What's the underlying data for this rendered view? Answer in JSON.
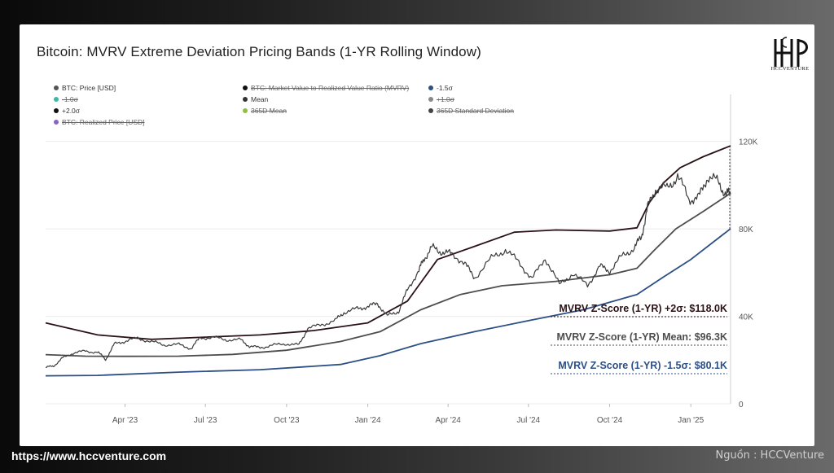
{
  "colors": {
    "price": "#3a3a3a",
    "plus2": "#2a1216",
    "mean": "#4d4d4d",
    "minus1_5": "#2c4f85",
    "grid": "#ececec",
    "tick": "#555555"
  },
  "footer": {
    "url": "https://www.hccventure.com",
    "source": "Nguồn : HCCVenture"
  },
  "logo_text": "HCCVENTURE",
  "chart_data": {
    "type": "line",
    "title": "Bitcoin: MVRV Extreme Deviation Pricing Bands (1-YR Rolling Window)",
    "xlabel": "",
    "ylabel": "",
    "x_ticks": [
      "Apr '23",
      "Jul '23",
      "Oct '23",
      "Jan '24",
      "Apr '24",
      "Jul '24",
      "Oct '24",
      "Jan '25"
    ],
    "y_ticks": [
      "0",
      "40K",
      "80K",
      "120K"
    ],
    "y_tick_values": [
      0,
      40000,
      80000,
      120000
    ],
    "ylim": [
      0,
      140000
    ],
    "grid": true,
    "legend_position": "top-left",
    "legend": [
      {
        "label": "BTC: Price [USD]",
        "color": "#555555",
        "enabled": true
      },
      {
        "label": "BTC: Market Value to Realized Value Ratio (MVRV)",
        "color": "#111111",
        "enabled": false
      },
      {
        "label": "-1.5σ",
        "color": "#2c4f85",
        "enabled": true
      },
      {
        "label": "-1.0σ",
        "color": "#3cb8a6",
        "enabled": false
      },
      {
        "label": "Mean",
        "color": "#333333",
        "enabled": true
      },
      {
        "label": "+1.0σ",
        "color": "#888888",
        "enabled": false
      },
      {
        "label": "+2.0σ",
        "color": "#111111",
        "enabled": true
      },
      {
        "label": "365D Mean",
        "color": "#8fbf3f",
        "enabled": false
      },
      {
        "label": "365D Standard Deviation",
        "color": "#444444",
        "enabled": false
      },
      {
        "label": "BTC: Realized Price [USD]",
        "color": "#8a63c7",
        "enabled": false
      }
    ],
    "x_start": "2023-01-01",
    "x_end": "2025-02-15",
    "series": [
      {
        "name": "BTC: Price [USD]",
        "x": [
          "2023-01-01",
          "2023-01-10",
          "2023-01-20",
          "2023-02-01",
          "2023-02-15",
          "2023-03-01",
          "2023-03-10",
          "2023-03-20",
          "2023-04-01",
          "2023-04-15",
          "2023-05-01",
          "2023-05-15",
          "2023-06-01",
          "2023-06-15",
          "2023-06-25",
          "2023-07-10",
          "2023-07-25",
          "2023-08-10",
          "2023-08-20",
          "2023-09-01",
          "2023-09-15",
          "2023-10-01",
          "2023-10-15",
          "2023-10-25",
          "2023-11-10",
          "2023-11-25",
          "2023-12-05",
          "2023-12-20",
          "2024-01-01",
          "2024-01-12",
          "2024-01-23",
          "2024-02-05",
          "2024-02-15",
          "2024-02-28",
          "2024-03-05",
          "2024-03-14",
          "2024-03-25",
          "2024-04-05",
          "2024-04-20",
          "2024-05-01",
          "2024-05-20",
          "2024-06-05",
          "2024-06-20",
          "2024-07-05",
          "2024-07-20",
          "2024-08-05",
          "2024-08-20",
          "2024-09-06",
          "2024-09-20",
          "2024-10-01",
          "2024-10-15",
          "2024-10-29",
          "2024-11-06",
          "2024-11-13",
          "2024-11-22",
          "2024-12-05",
          "2024-12-17",
          "2024-12-30",
          "2025-01-10",
          "2025-01-20",
          "2025-02-01",
          "2025-02-10",
          "2025-02-15"
        ],
        "values": [
          16600,
          17200,
          21000,
          23100,
          24200,
          23600,
          20200,
          27500,
          28400,
          30300,
          28300,
          27000,
          27200,
          25100,
          30400,
          30200,
          29300,
          29400,
          26100,
          25900,
          26600,
          27500,
          27000,
          34300,
          36500,
          37800,
          42000,
          43500,
          44200,
          46300,
          39800,
          42600,
          52000,
          61000,
          67000,
          71000,
          69800,
          68500,
          64000,
          58000,
          66000,
          71000,
          64600,
          57000,
          67000,
          54000,
          60000,
          53900,
          63000,
          61000,
          67000,
          72000,
          75800,
          90000,
          98500,
          98000,
          105000,
          92800,
          94700,
          104000,
          101000,
          96500,
          95800
        ]
      },
      {
        "name": "+2.0σ",
        "x": [
          "2023-01-01",
          "2023-03-01",
          "2023-05-01",
          "2023-07-01",
          "2023-09-01",
          "2023-11-01",
          "2024-01-01",
          "2024-02-15",
          "2024-03-20",
          "2024-05-01",
          "2024-06-15",
          "2024-08-01",
          "2024-10-01",
          "2024-11-01",
          "2024-11-15",
          "2024-12-01",
          "2024-12-20",
          "2025-01-15",
          "2025-02-15"
        ],
        "values": [
          37000,
          31500,
          29500,
          30500,
          31500,
          33500,
          37000,
          47000,
          66000,
          72000,
          78500,
          79500,
          79000,
          80500,
          92000,
          101000,
          108000,
          113000,
          118000
        ]
      },
      {
        "name": "Mean",
        "x": [
          "2023-01-01",
          "2023-02-15",
          "2023-04-01",
          "2023-06-01",
          "2023-08-01",
          "2023-10-01",
          "2023-12-01",
          "2024-01-15",
          "2024-03-01",
          "2024-04-15",
          "2024-06-01",
          "2024-08-01",
          "2024-10-01",
          "2024-11-01",
          "2024-11-20",
          "2024-12-15",
          "2025-01-15",
          "2025-02-15"
        ],
        "values": [
          22500,
          21800,
          21700,
          21800,
          22600,
          24500,
          28500,
          33000,
          43000,
          50000,
          54000,
          56000,
          59000,
          62000,
          70000,
          80000,
          88000,
          96300
        ]
      },
      {
        "name": "-1.5σ",
        "x": [
          "2023-01-01",
          "2023-03-01",
          "2023-06-01",
          "2023-09-01",
          "2023-12-01",
          "2024-01-15",
          "2024-03-01",
          "2024-05-01",
          "2024-07-01",
          "2024-09-01",
          "2024-11-01",
          "2024-12-01",
          "2025-01-01",
          "2025-02-15"
        ],
        "values": [
          12800,
          13000,
          14500,
          15600,
          18000,
          22000,
          27500,
          33000,
          38000,
          43000,
          50000,
          58000,
          66000,
          80100
        ]
      }
    ],
    "annotations": [
      {
        "text": "MVRV Z-Score (1-YR) +2σ: $118.0K",
        "color": "#2a1216",
        "value": 118000
      },
      {
        "text": "MVRV Z-Score (1-YR) Mean: $96.3K",
        "color": "#4d4d4d",
        "value": 96300
      },
      {
        "text": "MVRV Z-Score (1-YR) -1.5σ: $80.1K",
        "color": "#2c4f85",
        "value": 80100
      }
    ]
  }
}
